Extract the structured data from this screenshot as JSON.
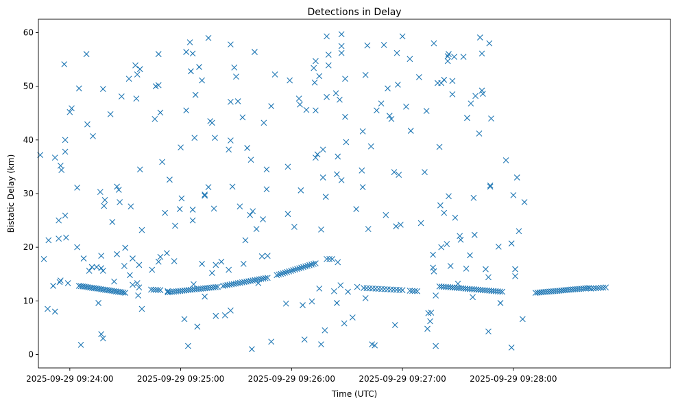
{
  "chart_data": {
    "type": "scatter",
    "title": "Detections in Delay",
    "xlabel": "Time (UTC)",
    "ylabel": "Bistatic Delay (km)",
    "marker": "x",
    "color": "#1f77b4",
    "xlim_seconds": [
      -17,
      325
    ],
    "ylim": [
      -2.5,
      62.5
    ],
    "x_ticks": [
      {
        "t": 0,
        "label": "2025-09-29 09:24:00"
      },
      {
        "t": 60,
        "label": "2025-09-29 09:25:00"
      },
      {
        "t": 120,
        "label": "2025-09-29 09:26:00"
      },
      {
        "t": 180,
        "label": "2025-09-29 09:27:00"
      },
      {
        "t": 240,
        "label": "2025-09-29 09:28:00"
      }
    ],
    "y_ticks": [
      {
        "v": 0,
        "label": "0"
      },
      {
        "v": 10,
        "label": "10"
      },
      {
        "v": 20,
        "label": "20"
      },
      {
        "v": 30,
        "label": "30"
      },
      {
        "v": 40,
        "label": "40"
      },
      {
        "v": 50,
        "label": "50"
      },
      {
        "v": 60,
        "label": "60"
      }
    ],
    "x_unit_note": "seconds after 09:24:00 UTC",
    "track_segments": [
      {
        "t_start": 5,
        "t_end": 30,
        "v_start": 12.8,
        "v_end": 11.5,
        "n": 26
      },
      {
        "t_start": 44,
        "t_end": 49,
        "v_start": 12.1,
        "v_end": 12.0,
        "n": 5
      },
      {
        "t_start": 53,
        "t_end": 80,
        "v_start": 11.6,
        "v_end": 12.6,
        "n": 25
      },
      {
        "t_start": 83,
        "t_end": 107,
        "v_start": 12.8,
        "v_end": 14.3,
        "n": 22
      },
      {
        "t_start": 112,
        "t_end": 133,
        "v_start": 14.8,
        "v_end": 17.0,
        "n": 20
      },
      {
        "t_start": 139,
        "t_end": 142,
        "v_start": 17.8,
        "v_end": 17.8,
        "n": 3
      },
      {
        "t_start": 159,
        "t_end": 180,
        "v_start": 12.4,
        "v_end": 12.0,
        "n": 14
      },
      {
        "t_start": 184,
        "t_end": 188,
        "v_start": 11.9,
        "v_end": 11.8,
        "n": 4
      },
      {
        "t_start": 200,
        "t_end": 234,
        "v_start": 12.7,
        "v_end": 11.7,
        "n": 30
      },
      {
        "t_start": 252,
        "t_end": 281,
        "v_start": 11.5,
        "v_end": 12.4,
        "n": 28
      },
      {
        "t_start": 282,
        "t_end": 290,
        "v_start": 12.3,
        "v_end": 12.5,
        "n": 7
      }
    ],
    "scatter_points": [
      [
        -16,
        37.2
      ],
      [
        -14,
        17.8
      ],
      [
        -12,
        8.5
      ],
      [
        -11.5,
        21.3
      ],
      [
        -9,
        12.8
      ],
      [
        -8,
        36.7
      ],
      [
        -8,
        8.0
      ],
      [
        -6,
        25.0
      ],
      [
        -6,
        21.6
      ],
      [
        -5.5,
        13.5
      ],
      [
        -5,
        13.8
      ],
      [
        -5,
        35.2
      ],
      [
        -4.5,
        34.4
      ],
      [
        -3,
        54.1
      ],
      [
        -2.5,
        40.0
      ],
      [
        -2.5,
        37.8
      ],
      [
        -2.5,
        25.9
      ],
      [
        -2,
        21.8
      ],
      [
        -1,
        13.3
      ],
      [
        0,
        45.2
      ],
      [
        1,
        45.9
      ],
      [
        4,
        31.1
      ],
      [
        4,
        20.0
      ],
      [
        5,
        49.6
      ],
      [
        6,
        1.8
      ],
      [
        7.5,
        17.9
      ],
      [
        9,
        56.0
      ],
      [
        9.5,
        42.9
      ],
      [
        10.5,
        15.6
      ],
      [
        12.5,
        40.7
      ],
      [
        12,
        16.3
      ],
      [
        14.5,
        16.3
      ],
      [
        15.5,
        9.6
      ],
      [
        16.5,
        30.3
      ],
      [
        17,
        18.4
      ],
      [
        17,
        16.1
      ],
      [
        17,
        3.8
      ],
      [
        18,
        3.0
      ],
      [
        18,
        49.5
      ],
      [
        18,
        15.6
      ],
      [
        18.5,
        27.7
      ],
      [
        19,
        28.8
      ],
      [
        22,
        44.8
      ],
      [
        23,
        24.7
      ],
      [
        24,
        13.6
      ],
      [
        25.5,
        31.3
      ],
      [
        25.5,
        18.7
      ],
      [
        26.5,
        30.7
      ],
      [
        27,
        28.4
      ],
      [
        28,
        48.1
      ],
      [
        29.5,
        16.5
      ],
      [
        30,
        19.9
      ],
      [
        32,
        51.4
      ],
      [
        32.5,
        14.8
      ],
      [
        33,
        27.6
      ],
      [
        34,
        17.9
      ],
      [
        34,
        13.0
      ],
      [
        35.5,
        53.9
      ],
      [
        36,
        47.7
      ],
      [
        36.5,
        52.2
      ],
      [
        36.5,
        13.3
      ],
      [
        37,
        11.0
      ],
      [
        37.5,
        16.7
      ],
      [
        37.5,
        12.5
      ],
      [
        38,
        53.2
      ],
      [
        38,
        34.5
      ],
      [
        39,
        23.2
      ],
      [
        39,
        8.5
      ],
      [
        44.5,
        15.8
      ],
      [
        46,
        43.9
      ],
      [
        46.5,
        50.0
      ],
      [
        48,
        56.0
      ],
      [
        48,
        50.2
      ],
      [
        48,
        17.3
      ],
      [
        49,
        45.1
      ],
      [
        49,
        18.2
      ],
      [
        50,
        35.9
      ],
      [
        51.5,
        26.4
      ],
      [
        52.5,
        18.9
      ],
      [
        53,
        11.8
      ],
      [
        54,
        32.6
      ],
      [
        56.5,
        17.4
      ],
      [
        57,
        24.0
      ],
      [
        59.5,
        27.1
      ],
      [
        60,
        38.6
      ],
      [
        60.5,
        29.1
      ],
      [
        62,
        6.6
      ],
      [
        63,
        56.4
      ],
      [
        63,
        45.5
      ],
      [
        64,
        1.6
      ],
      [
        65,
        58.2
      ],
      [
        65.5,
        52.8
      ],
      [
        66.5,
        56.1
      ],
      [
        66.5,
        27.0
      ],
      [
        66.5,
        25.0
      ],
      [
        67,
        13.1
      ],
      [
        67.5,
        40.4
      ],
      [
        68,
        48.4
      ],
      [
        69,
        5.2
      ],
      [
        70,
        53.6
      ],
      [
        71.5,
        51.1
      ],
      [
        71.5,
        16.9
      ],
      [
        73,
        29.8
      ],
      [
        73,
        29.6
      ],
      [
        73,
        10.8
      ],
      [
        75,
        59.0
      ],
      [
        75,
        31.2
      ],
      [
        76,
        43.5
      ],
      [
        77,
        43.2
      ],
      [
        77,
        15.2
      ],
      [
        78,
        27.2
      ],
      [
        78.5,
        40.4
      ],
      [
        79,
        16.7
      ],
      [
        79,
        7.2
      ],
      [
        82,
        17.3
      ],
      [
        84,
        7.3
      ],
      [
        86,
        15.8
      ],
      [
        87,
        8.2
      ],
      [
        86,
        38.2
      ],
      [
        87,
        39.9
      ],
      [
        87,
        57.8
      ],
      [
        87,
        47.1
      ],
      [
        88,
        31.3
      ],
      [
        89,
        53.5
      ],
      [
        90,
        51.8
      ],
      [
        91,
        47.2
      ],
      [
        92,
        27.6
      ],
      [
        93.5,
        44.2
      ],
      [
        94,
        16.9
      ],
      [
        95,
        21.3
      ],
      [
        96,
        38.5
      ],
      [
        97.5,
        26.0
      ],
      [
        98,
        36.3
      ],
      [
        98.5,
        1.0
      ],
      [
        100,
        56.4
      ],
      [
        99,
        26.7
      ],
      [
        101,
        23.4
      ],
      [
        102,
        13.3
      ],
      [
        104,
        18.3
      ],
      [
        104.5,
        25.2
      ],
      [
        105,
        43.2
      ],
      [
        106.5,
        34.5
      ],
      [
        106.5,
        30.8
      ],
      [
        107,
        18.4
      ],
      [
        109,
        46.3
      ],
      [
        109,
        2.4
      ],
      [
        111,
        52.2
      ],
      [
        117,
        9.5
      ],
      [
        118,
        26.2
      ],
      [
        118,
        35.0
      ],
      [
        119,
        51.1
      ],
      [
        121.5,
        23.8
      ],
      [
        124,
        47.7
      ],
      [
        124.5,
        46.6
      ],
      [
        125,
        30.6
      ],
      [
        126,
        9.2
      ],
      [
        127,
        2.8
      ],
      [
        128,
        45.6
      ],
      [
        131,
        9.9
      ],
      [
        132,
        53.4
      ],
      [
        132.5,
        50.7
      ],
      [
        133,
        54.7
      ],
      [
        133,
        45.5
      ],
      [
        133,
        36.7
      ],
      [
        134,
        37.3
      ],
      [
        135,
        12.3
      ],
      [
        135,
        51.9
      ],
      [
        136,
        23.3
      ],
      [
        136,
        1.9
      ],
      [
        137,
        38.2
      ],
      [
        137,
        33.0
      ],
      [
        138,
        4.5
      ],
      [
        138.5,
        29.4
      ],
      [
        139,
        59.3
      ],
      [
        139,
        48.0
      ],
      [
        140,
        55.9
      ],
      [
        140,
        53.9
      ],
      [
        143,
        11.8
      ],
      [
        144,
        48.7
      ],
      [
        144.5,
        33.6
      ],
      [
        144.5,
        9.6
      ],
      [
        145,
        17.2
      ],
      [
        145,
        36.9
      ],
      [
        146,
        47.5
      ],
      [
        146.5,
        12.9
      ],
      [
        147,
        32.5
      ],
      [
        147,
        59.7
      ],
      [
        147,
        57.5
      ],
      [
        147,
        56.2
      ],
      [
        148.5,
        5.8
      ],
      [
        149,
        44.3
      ],
      [
        149,
        51.4
      ],
      [
        149.5,
        39.6
      ],
      [
        150.5,
        11.7
      ],
      [
        153,
        6.9
      ],
      [
        155,
        27.1
      ],
      [
        155.5,
        12.6
      ],
      [
        158,
        34.3
      ],
      [
        158.5,
        41.6
      ],
      [
        158.5,
        31.2
      ],
      [
        160,
        52.1
      ],
      [
        160,
        10.5
      ],
      [
        161,
        57.6
      ],
      [
        161.5,
        23.4
      ],
      [
        163,
        38.8
      ],
      [
        163.5,
        1.9
      ],
      [
        165,
        1.7
      ],
      [
        166,
        45.5
      ],
      [
        168.5,
        46.8
      ],
      [
        170,
        57.7
      ],
      [
        171,
        26.0
      ],
      [
        172,
        49.6
      ],
      [
        173,
        44.5
      ],
      [
        174,
        43.9
      ],
      [
        175.5,
        34.0
      ],
      [
        176,
        5.5
      ],
      [
        176.5,
        23.9
      ],
      [
        177,
        56.2
      ],
      [
        177.5,
        50.3
      ],
      [
        178,
        33.5
      ],
      [
        179,
        24.2
      ],
      [
        180,
        59.3
      ],
      [
        182,
        46.2
      ],
      [
        184,
        55.1
      ],
      [
        184.5,
        41.7
      ],
      [
        189,
        51.7
      ],
      [
        190,
        24.5
      ],
      [
        192,
        34.0
      ],
      [
        193,
        45.4
      ],
      [
        194,
        7.7
      ],
      [
        193.5,
        4.8
      ],
      [
        195,
        6.2
      ],
      [
        195.5,
        7.8
      ],
      [
        196.5,
        16.2
      ],
      [
        196.5,
        18.6
      ],
      [
        197,
        58.0
      ],
      [
        197,
        15.5
      ],
      [
        198,
        11.0
      ],
      [
        198,
        1.6
      ],
      [
        199,
        50.6
      ],
      [
        200,
        38.7
      ],
      [
        200.5,
        27.8
      ],
      [
        201,
        20.0
      ],
      [
        201,
        50.6
      ],
      [
        202.5,
        51.2
      ],
      [
        202.5,
        26.4
      ],
      [
        204,
        20.6
      ],
      [
        204.5,
        55.6
      ],
      [
        204.5,
        54.7
      ],
      [
        205,
        56.0
      ],
      [
        205,
        29.5
      ],
      [
        206,
        16.5
      ],
      [
        207,
        51.0
      ],
      [
        207,
        48.5
      ],
      [
        208,
        55.5
      ],
      [
        208.5,
        25.5
      ],
      [
        210,
        13.2
      ],
      [
        211,
        22.1
      ],
      [
        211.5,
        21.4
      ],
      [
        213,
        55.5
      ],
      [
        214.5,
        16.0
      ],
      [
        215,
        44.1
      ],
      [
        216.5,
        18.5
      ],
      [
        217,
        46.8
      ],
      [
        218,
        10.7
      ],
      [
        218.5,
        29.2
      ],
      [
        219,
        22.3
      ],
      [
        219.5,
        48.2
      ],
      [
        222,
        59.1
      ],
      [
        221.5,
        41.2
      ],
      [
        223,
        56.1
      ],
      [
        223,
        49.2
      ],
      [
        223.5,
        48.6
      ],
      [
        225,
        15.9
      ],
      [
        226.5,
        14.4
      ],
      [
        226.5,
        4.3
      ],
      [
        227,
        58.0
      ],
      [
        227.5,
        31.5
      ],
      [
        227.5,
        31.3
      ],
      [
        228,
        44.0
      ],
      [
        232,
        20.1
      ],
      [
        233,
        9.6
      ],
      [
        236,
        36.2
      ],
      [
        239,
        20.7
      ],
      [
        239,
        1.3
      ],
      [
        240,
        29.7
      ],
      [
        241,
        15.9
      ],
      [
        241,
        14.6
      ],
      [
        242,
        33.0
      ],
      [
        243,
        23.0
      ],
      [
        245,
        6.6
      ],
      [
        246,
        28.4
      ]
    ]
  }
}
